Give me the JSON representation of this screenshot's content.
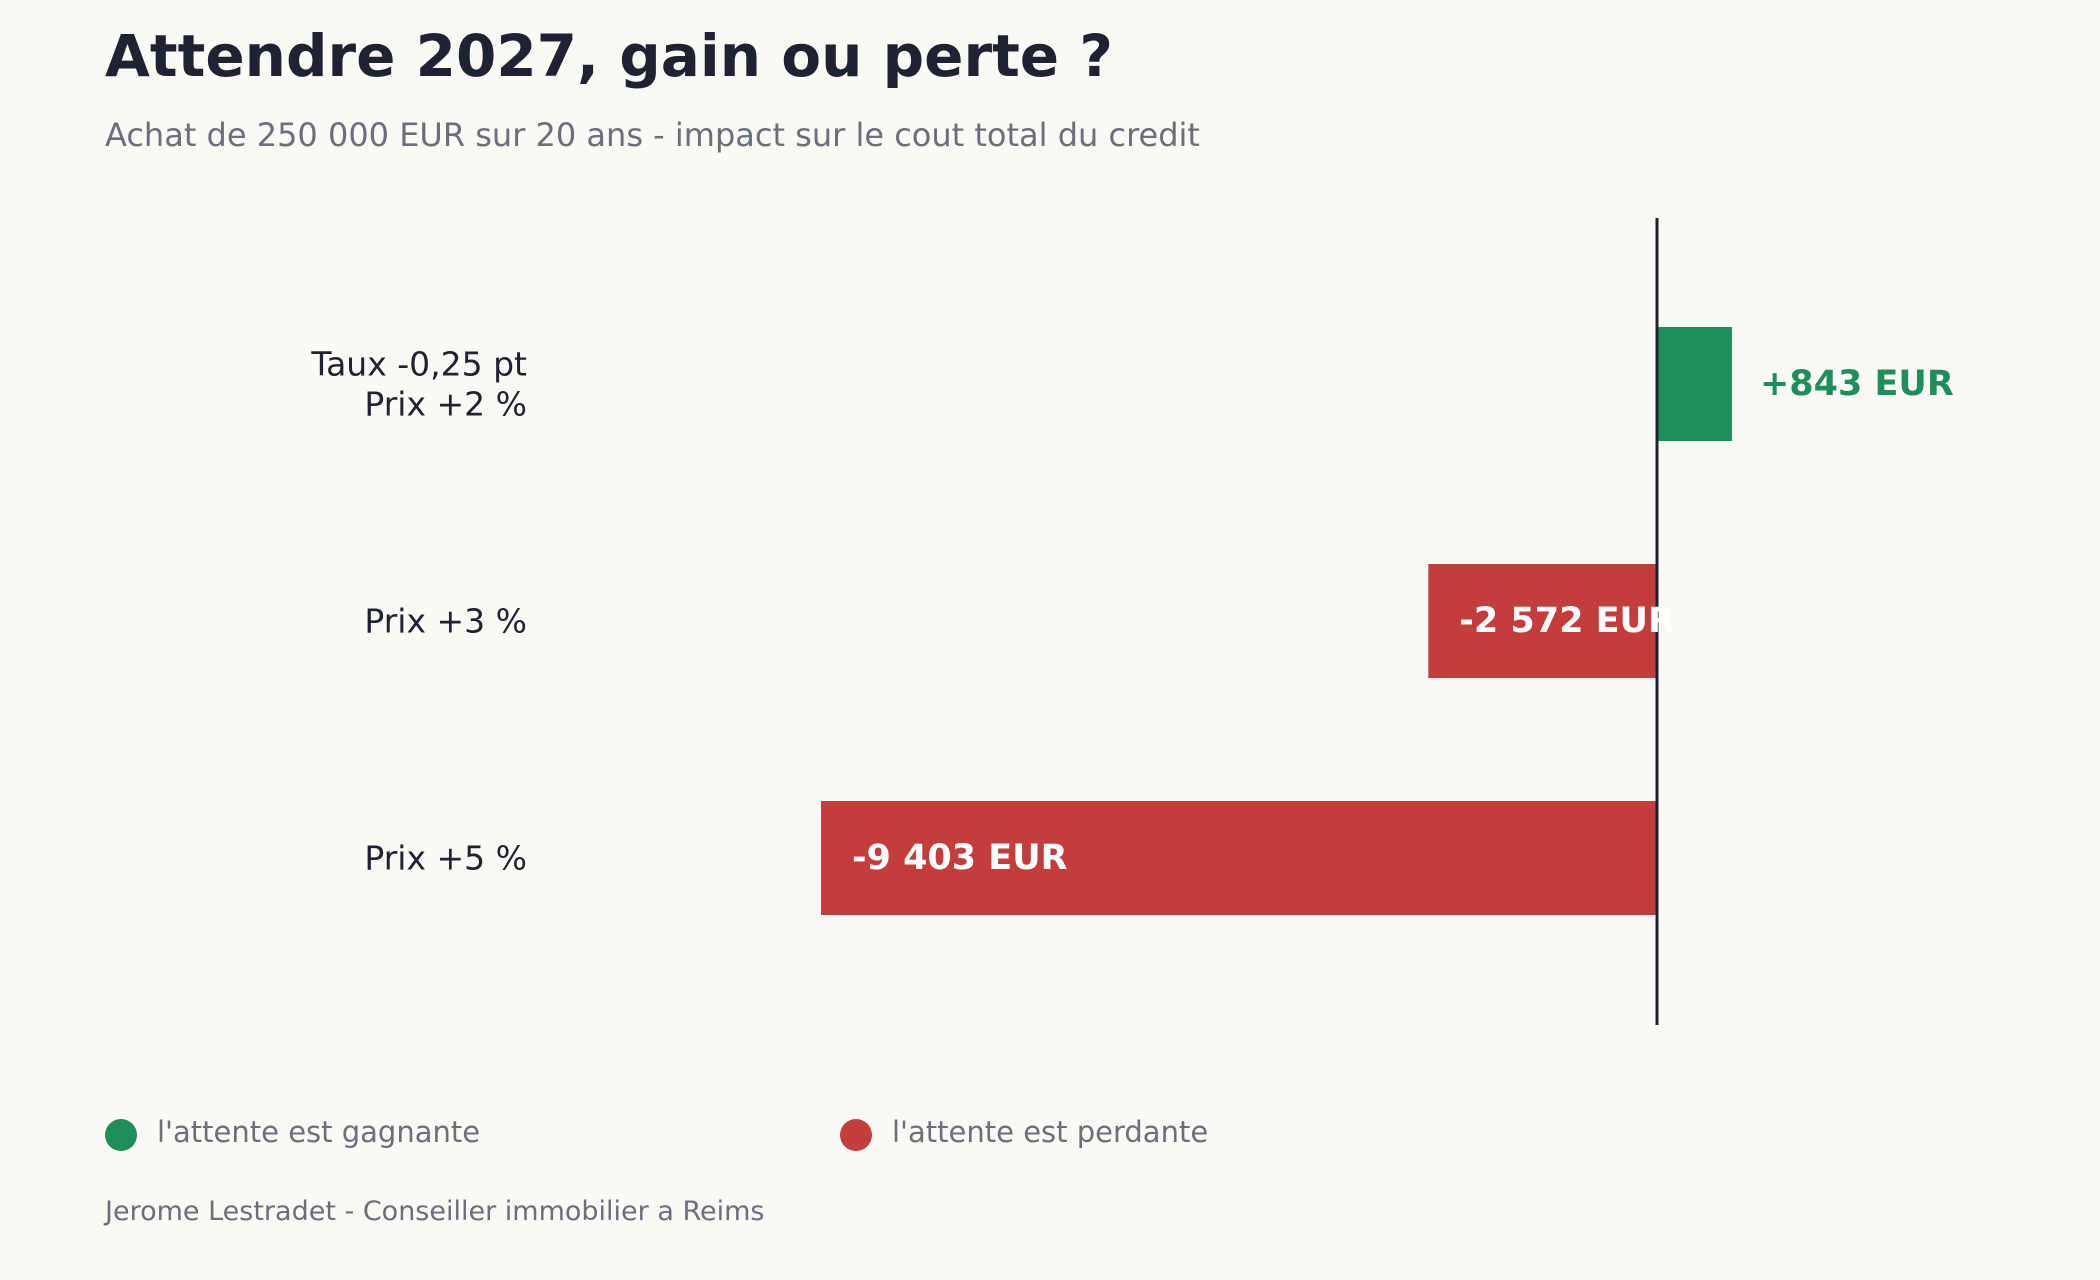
{
  "title": "Attendre 2027, gain ou perte ?",
  "subtitle": "Achat de 250 000 EUR sur 20 ans - impact sur le cout total du credit",
  "chart_data": {
    "type": "bar",
    "orientation": "horizontal",
    "categories": [
      [
        "Taux -0,25 pt",
        "Prix +2 %"
      ],
      [
        "Prix +3 %"
      ],
      [
        "Prix +5 %"
      ]
    ],
    "values": [
      843,
      -2572,
      -9403
    ],
    "data_labels": [
      "+843 EUR",
      "-2 572 EUR",
      "-9 403 EUR"
    ],
    "xlim": [
      -9403,
      843
    ],
    "zero_line": true,
    "grid": false,
    "legend_placement": "bottom-left"
  },
  "legend": {
    "positive": {
      "label": "l'attente est gagnante",
      "color": "#1e8f5a"
    },
    "negative": {
      "label": "l'attente est perdante",
      "color": "#c43d3d"
    }
  },
  "footer": "Jerome Lestradet - Conseiller immobilier a Reims",
  "colors": {
    "positive": "#1e8f5a",
    "negative": "#c43d3d",
    "axis": "#1f2230",
    "category_text": "#1f2230",
    "inner_label": "#ffffff"
  }
}
